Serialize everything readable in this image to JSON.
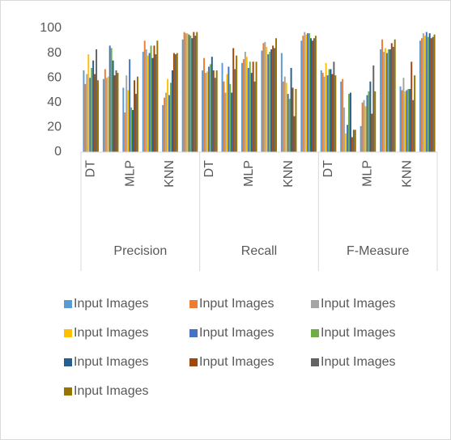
{
  "chart_data": {
    "type": "bar",
    "categories": [
      "DT",
      null,
      "MLP",
      null,
      "KNN",
      null,
      "DT",
      null,
      "MLP",
      null,
      "KNN",
      null,
      "DT",
      null,
      "MLP",
      null,
      "KNN",
      null
    ],
    "groups": [
      "Precision",
      "Recall",
      "F-Measure"
    ],
    "ylim": [
      0,
      100
    ],
    "yticks": [
      0,
      20,
      40,
      60,
      80,
      100
    ],
    "grid": false,
    "legend": "bottom",
    "series": [
      {
        "name": "Input Images",
        "color": "#5b9bd5",
        "values": [
          66,
          59,
          52,
          81,
          38,
          91,
          66,
          72,
          72,
          82,
          80,
          90,
          66,
          57,
          21,
          83,
          53,
          90
        ]
      },
      {
        "name": "Input Images",
        "color": "#ed7d31",
        "values": [
          55,
          67,
          32,
          90,
          44,
          97,
          76,
          57,
          75,
          88,
          57,
          94,
          64,
          59,
          40,
          91,
          50,
          92
        ]
      },
      {
        "name": "Input Images",
        "color": "#a5a5a5",
        "values": [
          63,
          60,
          62,
          83,
          48,
          96,
          64,
          48,
          81,
          89,
          61,
          97,
          61,
          36,
          42,
          81,
          60,
          96
        ]
      },
      {
        "name": "Input Images",
        "color": "#ffc000",
        "values": [
          79,
          61,
          50,
          78,
          59,
          96,
          65,
          63,
          77,
          85,
          56,
          95,
          72,
          15,
          37,
          84,
          49,
          94
        ]
      },
      {
        "name": "Input Images",
        "color": "#4472c4",
        "values": [
          60,
          86,
          75,
          80,
          46,
          95,
          69,
          69,
          68,
          79,
          47,
          96,
          62,
          22,
          46,
          80,
          50,
          97
        ]
      },
      {
        "name": "Input Images",
        "color": "#70ad47",
        "values": [
          68,
          84,
          36,
          86,
          56,
          94,
          71,
          55,
          73,
          81,
          43,
          96,
          67,
          47,
          49,
          83,
          51,
          93
        ]
      },
      {
        "name": "Input Images",
        "color": "#255e91",
        "values": [
          74,
          74,
          34,
          76,
          66,
          92,
          77,
          48,
          64,
          83,
          68,
          92,
          67,
          48,
          57,
          83,
          51,
          96
        ]
      },
      {
        "name": "Input Images",
        "color": "#9e480e",
        "values": [
          63,
          62,
          58,
          86,
          80,
          97,
          66,
          84,
          73,
          86,
          52,
          90,
          63,
          12,
          31,
          88,
          73,
          92
        ]
      },
      {
        "name": "Input Images",
        "color": "#636363",
        "values": [
          83,
          66,
          47,
          79,
          79,
          94,
          60,
          67,
          57,
          84,
          29,
          92,
          73,
          18,
          70,
          85,
          42,
          93
        ]
      },
      {
        "name": "Input Images",
        "color": "#997300",
        "values": [
          58,
          64,
          61,
          90,
          80,
          97,
          66,
          78,
          73,
          92,
          51,
          94,
          62,
          18,
          49,
          91,
          62,
          95
        ]
      }
    ]
  }
}
